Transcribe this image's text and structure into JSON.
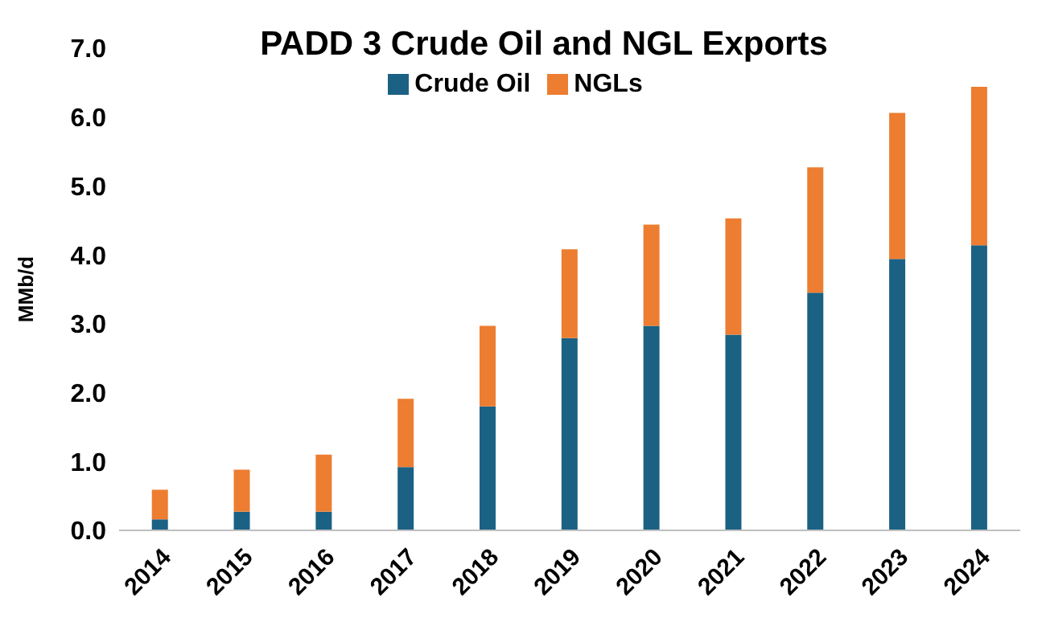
{
  "chart_data": {
    "type": "bar",
    "title": "PADD 3 Crude Oil and NGL Exports",
    "ylabel": "MMb/d",
    "categories": [
      "2014",
      "2015",
      "2016",
      "2017",
      "2018",
      "2019",
      "2020",
      "2021",
      "2022",
      "2023",
      "2024"
    ],
    "series": [
      {
        "name": "Crude Oil",
        "color": "#1b6184",
        "values": [
          0.16,
          0.27,
          0.27,
          0.92,
          1.8,
          2.79,
          2.97,
          2.84,
          3.45,
          3.94,
          4.14
        ]
      },
      {
        "name": "NGLs",
        "color": "#ed7d31",
        "values": [
          0.43,
          0.61,
          0.83,
          0.99,
          1.17,
          1.29,
          1.47,
          1.69,
          1.82,
          2.12,
          2.3
        ]
      }
    ],
    "stacked": true,
    "ylim": [
      0,
      7
    ],
    "yticks": [
      {
        "value": 0,
        "label": "0.0"
      },
      {
        "value": 1,
        "label": "1.0"
      },
      {
        "value": 2,
        "label": "2.0"
      },
      {
        "value": 3,
        "label": "3.0"
      },
      {
        "value": 4,
        "label": "4.0"
      },
      {
        "value": 5,
        "label": "5.0"
      },
      {
        "value": 6,
        "label": "6.0"
      },
      {
        "value": 7,
        "label": "7.0"
      }
    ],
    "grid": false,
    "legend": "top"
  }
}
